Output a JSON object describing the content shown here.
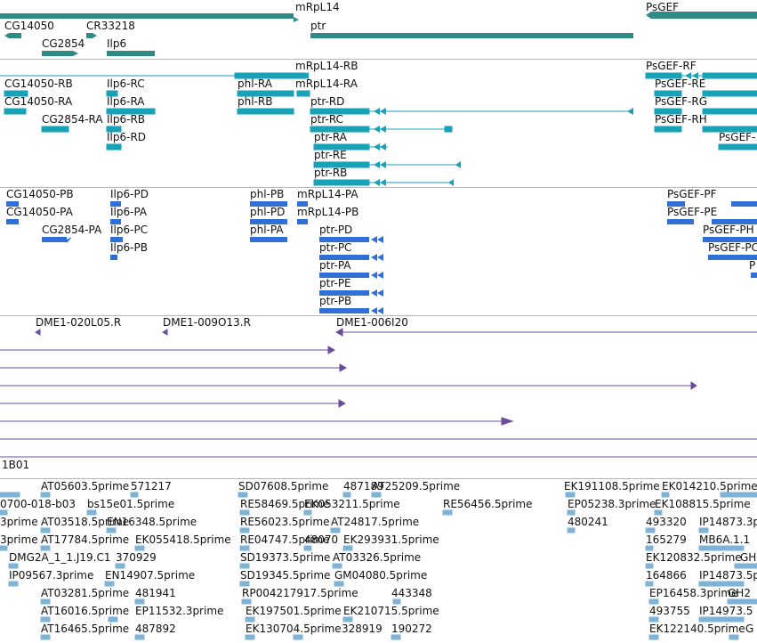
{
  "colors": {
    "gene": "#2e8b86",
    "transcript": "#17a2b8",
    "protein": "#2f6fd6",
    "clone": "#6a4c9c",
    "est": "#7eb3d8",
    "divider": "#b8b8b8",
    "text": "#111111"
  },
  "genes": {
    "labels": [
      "mRpL14",
      "PsGEF",
      "CG14050",
      "CR33218",
      "ptr",
      "CG2854",
      "Ilp6"
    ]
  },
  "transcripts": {
    "labels": [
      "mRpL14-RB",
      "PsGEF-RF",
      "CG14050-RB",
      "Ilp6-RC",
      "phl-RA",
      "mRpL14-RA",
      "PsGEF-RE",
      "CG14050-RA",
      "Ilp6-RA",
      "phl-RB",
      "ptr-RD",
      "PsGEF-RG",
      "CG2854-RA",
      "Ilp6-RB",
      "ptr-RC",
      "PsGEF-RH",
      "Ilp6-RD",
      "ptr-RA",
      "PsGEF-",
      "ptr-RE",
      "ptr-RB"
    ]
  },
  "proteins": {
    "labels": [
      "CG14050-PB",
      "Ilp6-PD",
      "phl-PB",
      "mRpL14-PA",
      "PsGEF-PF",
      "CG14050-PA",
      "Ilp6-PA",
      "phl-PD",
      "mRpL14-PB",
      "PsGEF-PE",
      "CG2854-PA",
      "Ilp6-PC",
      "phl-PA",
      "ptr-PD",
      "PsGEF-PH",
      "Ilp6-PB",
      "ptr-PC",
      "PsGEF-PC",
      "ptr-PA",
      "P",
      "ptr-PE",
      "ptr-PB"
    ]
  },
  "clones": {
    "labels": [
      "DME1-020L05.R",
      "DME1-009O13.R",
      "DME1-006I20",
      "1B01"
    ]
  },
  "ests": {
    "labels": [
      "AT05603.5prime",
      "571217",
      "SD07608.5prime",
      "487189",
      "AT25209.5prime",
      "EK191108.5prime",
      "EK014210.5prime",
      "0700-018-b03",
      "bs15e01.5prime",
      "RE58469.5prime",
      "EK053211.5prime",
      "RE56456.5prime",
      "EP05238.3prime",
      "EK108815.5prime",
      "3prime",
      "AT03518.5prime",
      "EN16348.5prime",
      "RE56023.5prime",
      "AT24817.5prime",
      "480241",
      "493320",
      "IP14873.3p",
      "3prime",
      "AT17784.5prime",
      "EK055418.5prime",
      "RE04747.5prime",
      "48070",
      "EK293931.5prime",
      "165279",
      "MB6A.1.1",
      "DMG2A_1_1.J19.C1",
      "370929",
      "SD19373.5prime",
      "AT03326.5prime",
      "EK120832.5prime",
      "GH",
      "IP09567.3prime",
      "EN14907.5prime",
      "SD19345.5prime",
      "GM04080.5prime",
      "164866",
      "IP14873.5p",
      "AT03281.5prime",
      "481941",
      "RP004217917.5prime",
      "443348",
      "EP16458.3prime",
      "GH2",
      "AT16016.5prime",
      "EP11532.3prime",
      "EK197501.5prime",
      "EK210715.5prime",
      "493755",
      "IP14973.5",
      "AT16465.5prime",
      "487892",
      "EK130704.5prime",
      "328919",
      "190272",
      "EK122140.5prime",
      "G"
    ]
  }
}
